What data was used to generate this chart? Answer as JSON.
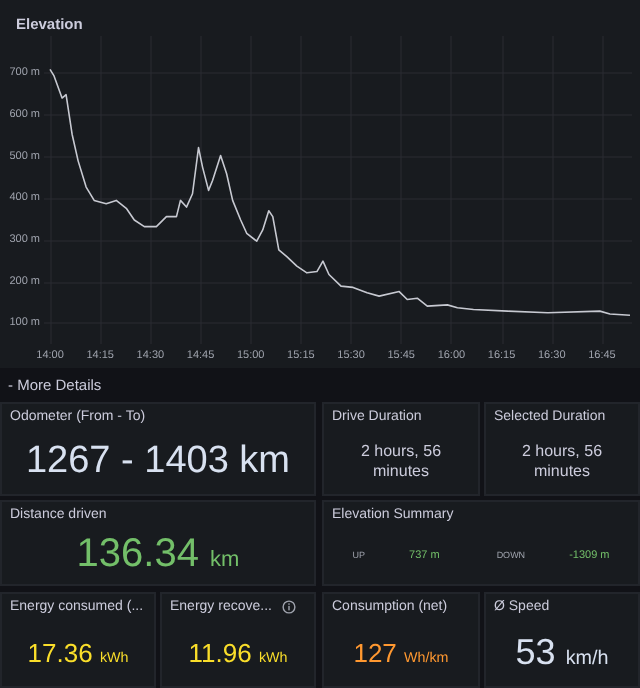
{
  "chart_data": [
    {
      "type": "line",
      "title": "Elevation",
      "color": "#c7c9d1",
      "grid": true,
      "marker": "none",
      "line_style": "solid",
      "x": [
        14.0,
        14.02,
        14.06,
        14.08,
        14.11,
        14.14,
        14.18,
        14.22,
        14.28,
        14.33,
        14.38,
        14.42,
        14.47,
        14.53,
        14.58,
        14.63,
        14.65,
        14.68,
        14.71,
        14.74,
        14.76,
        14.79,
        14.81,
        14.85,
        14.88,
        14.91,
        14.95,
        14.98,
        15.03,
        15.06,
        15.09,
        15.11,
        15.14,
        15.18,
        15.23,
        15.28,
        15.33,
        15.36,
        15.39,
        15.45,
        15.51,
        15.58,
        15.64,
        15.74,
        15.78,
        15.83,
        15.88,
        15.98,
        16.03,
        16.11,
        16.28,
        16.48,
        16.74,
        16.79,
        16.89
      ],
      "values": [
        710,
        694,
        641,
        649,
        554,
        490,
        427,
        395,
        387,
        395,
        376,
        348,
        332,
        332,
        356,
        356,
        395,
        379,
        411,
        522,
        475,
        419,
        443,
        503,
        459,
        395,
        348,
        316,
        297,
        324,
        370,
        356,
        276,
        260,
        237,
        221,
        224,
        249,
        217,
        189,
        186,
        173,
        165,
        176,
        157,
        160,
        141,
        144,
        137,
        133,
        129,
        125,
        129,
        122,
        119
      ],
      "xlim": [
        13.97,
        16.9
      ],
      "ylim": [
        50,
        790
      ],
      "xticks": [
        {
          "value": 14,
          "label": "14:00"
        },
        {
          "value": 14.25,
          "label": "14:15"
        },
        {
          "value": 14.5,
          "label": "14:30"
        },
        {
          "value": 14.75,
          "label": "14:45"
        },
        {
          "value": 15,
          "label": "15:00"
        },
        {
          "value": 15.25,
          "label": "15:15"
        },
        {
          "value": 15.5,
          "label": "15:30"
        },
        {
          "value": 15.75,
          "label": "15:45"
        },
        {
          "value": 16,
          "label": "16:00"
        },
        {
          "value": 16.25,
          "label": "16:15"
        },
        {
          "value": 16.5,
          "label": "16:30"
        },
        {
          "value": 16.75,
          "label": "16:45"
        }
      ],
      "yticks": [
        {
          "value": 100,
          "label": "100 m"
        },
        {
          "value": 200,
          "label": "200 m"
        },
        {
          "value": 300,
          "label": "300 m"
        },
        {
          "value": 400,
          "label": "400 m"
        },
        {
          "value": 500,
          "label": "500 m"
        },
        {
          "value": 600,
          "label": "600 m"
        },
        {
          "value": 700,
          "label": "700 m"
        }
      ]
    },
    {
      "type": "other",
      "title": "- More Details"
    },
    {
      "type": "other",
      "title": "Odometer (From - To)",
      "annotations": [
        "1267 - 1403 km"
      ],
      "color": "#d8e1f0"
    },
    {
      "type": "other",
      "title": "Drive Duration",
      "annotations": [
        "2 hours, 56 minutes"
      ],
      "color": "#ccccdc"
    },
    {
      "type": "other",
      "title": "Selected Duration",
      "annotations": [
        "2 hours, 56 minutes"
      ],
      "color": "#ccccdc"
    },
    {
      "type": "other",
      "title": "Distance driven",
      "annotations": [
        "136.34 km"
      ],
      "color": "#73bf69"
    },
    {
      "type": "other",
      "title": "Elevation Summary",
      "annotations": [
        "UP",
        "737 m",
        "DOWN",
        "-1309 m"
      ],
      "color": "#73bf69"
    },
    {
      "type": "other",
      "title": "Energy consumed (...",
      "annotations": [
        "17.36 kWh"
      ],
      "color": "#fade2a"
    },
    {
      "type": "other",
      "title": "Energy recove...",
      "annotations": [
        "11.96 kWh"
      ],
      "color": "#fade2a"
    },
    {
      "type": "other",
      "title": "Consumption (net)",
      "annotations": [
        "127 Wh/km"
      ],
      "color": "#ff9830"
    },
    {
      "type": "other",
      "title": "Ø Speed",
      "annotations": [
        "53 km/h"
      ],
      "color": "#d8e1f0"
    }
  ]
}
